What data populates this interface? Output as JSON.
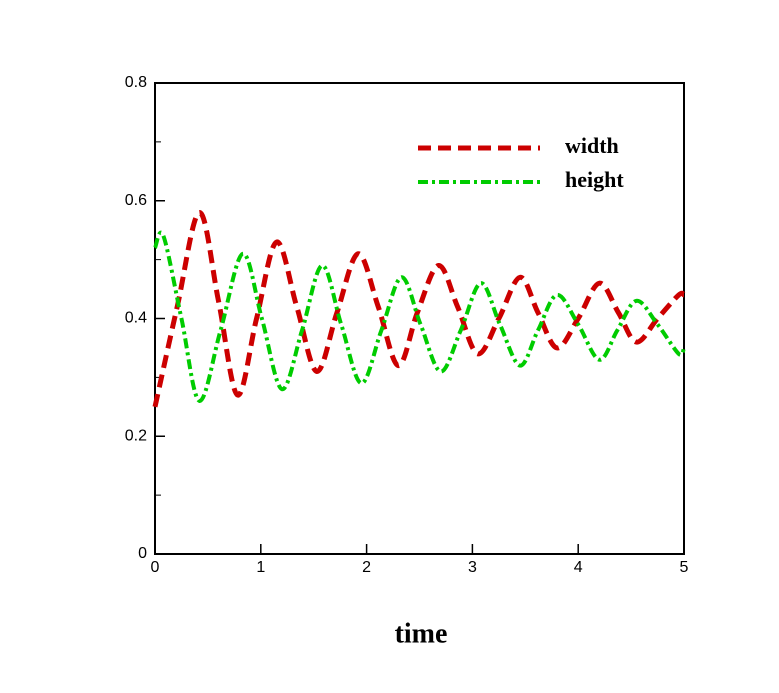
{
  "chart_data": {
    "type": "line",
    "xlabel": "time",
    "xlim": [
      0,
      5
    ],
    "xticks": [
      0,
      1,
      2,
      3,
      4,
      5
    ],
    "ylim": [
      0,
      0.8
    ],
    "yticks": [
      0,
      0.2,
      0.4,
      0.6,
      0.8
    ],
    "yminorticks": [
      0.1,
      0.3,
      0.5,
      0.7
    ],
    "legend": "upper right",
    "series": [
      {
        "name": "width",
        "color": "#cc0000",
        "linestyle": "dashed",
        "x": [
          0,
          0.21,
          0.42,
          0.6,
          0.78,
          0.96,
          1.15,
          1.34,
          1.53,
          1.72,
          1.92,
          2.11,
          2.3,
          2.48,
          2.68,
          2.86,
          3.05,
          3.25,
          3.45,
          3.62,
          3.8,
          4.0,
          4.2,
          4.38,
          4.55,
          4.75,
          4.95,
          5
        ],
        "values": [
          0.25,
          0.42,
          0.58,
          0.43,
          0.27,
          0.4,
          0.53,
          0.42,
          0.31,
          0.41,
          0.51,
          0.42,
          0.32,
          0.41,
          0.49,
          0.42,
          0.34,
          0.4,
          0.47,
          0.41,
          0.35,
          0.4,
          0.46,
          0.41,
          0.36,
          0.4,
          0.44,
          0.44
        ]
      },
      {
        "name": "height",
        "color": "#00cc00",
        "linestyle": "dashdot",
        "x": [
          0,
          0.08,
          0.25,
          0.42,
          0.62,
          0.83,
          1.01,
          1.2,
          1.39,
          1.58,
          1.76,
          1.95,
          2.14,
          2.33,
          2.51,
          2.7,
          2.89,
          3.08,
          3.26,
          3.45,
          3.62,
          3.8,
          4.0,
          4.2,
          4.37,
          4.55,
          4.75,
          4.95,
          5
        ],
        "values": [
          0.52,
          0.54,
          0.4,
          0.26,
          0.38,
          0.51,
          0.4,
          0.28,
          0.38,
          0.49,
          0.39,
          0.29,
          0.38,
          0.47,
          0.39,
          0.31,
          0.38,
          0.46,
          0.39,
          0.32,
          0.38,
          0.44,
          0.39,
          0.33,
          0.38,
          0.43,
          0.39,
          0.34,
          0.35
        ]
      }
    ]
  }
}
